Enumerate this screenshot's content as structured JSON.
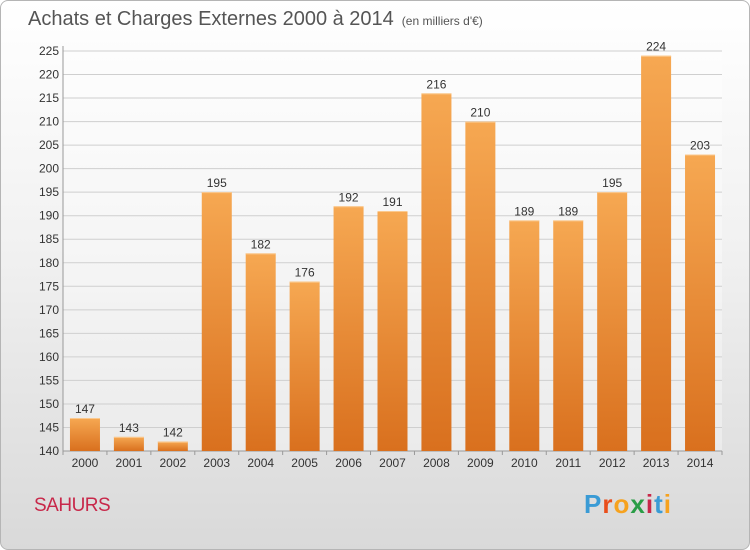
{
  "header": {
    "title": "Achats et Charges Externes 2000 à 2014",
    "subtitle": "(en milliers d'€)"
  },
  "footer": {
    "town": "SAHURS",
    "logo_letters": [
      "P",
      "r",
      "o",
      "x",
      "i",
      "t",
      "i"
    ],
    "logo_colors": [
      "#3a9bd5",
      "#e94e1b",
      "#f6a21e",
      "#2a9d46",
      "#c8284a",
      "#3a9bd5",
      "#f6a21e"
    ]
  },
  "colors": {
    "bar_top": "#f6a852",
    "bar_bottom": "#d9701e",
    "title": "#555555",
    "town": "#c8284a"
  },
  "chart_data": {
    "type": "bar",
    "title": "Achats et Charges Externes 2000 à 2014",
    "categories": [
      "2000",
      "2001",
      "2002",
      "2003",
      "2004",
      "2005",
      "2006",
      "2007",
      "2008",
      "2009",
      "2010",
      "2011",
      "2012",
      "2013",
      "2014"
    ],
    "values": [
      147,
      143,
      142,
      195,
      182,
      176,
      192,
      191,
      216,
      210,
      189,
      189,
      195,
      224,
      203
    ],
    "ylim": [
      140,
      225
    ],
    "yticks": [
      140,
      145,
      150,
      155,
      160,
      165,
      170,
      175,
      180,
      185,
      190,
      195,
      200,
      205,
      210,
      215,
      220,
      225
    ],
    "grid": true,
    "legend": "none"
  }
}
